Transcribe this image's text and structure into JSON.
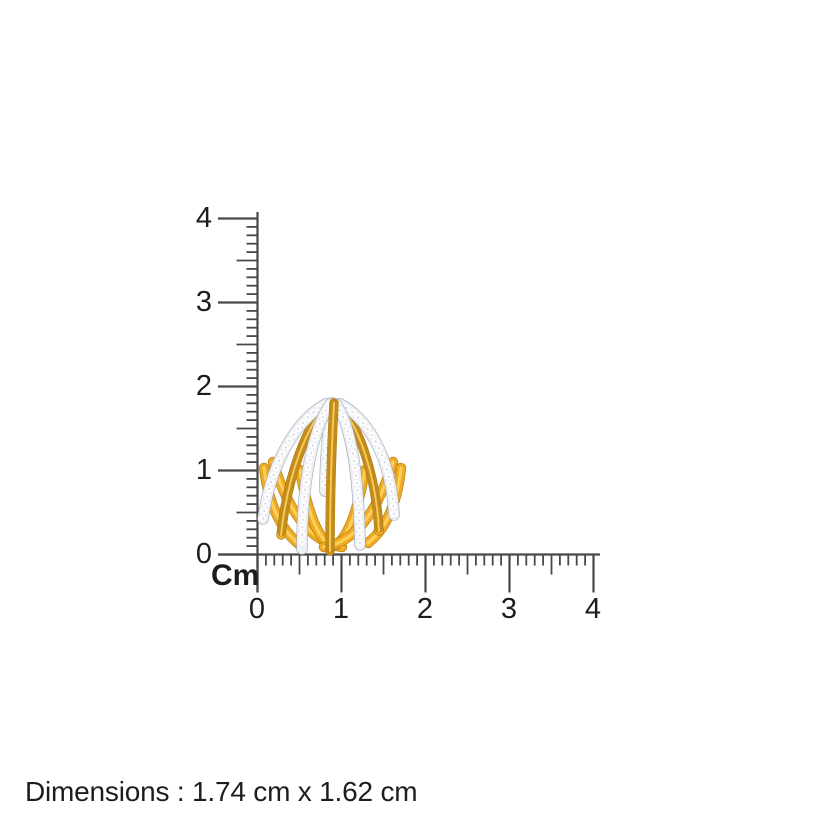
{
  "ruler": {
    "unit_label": "Cm",
    "vertical_labels": [
      "4",
      "3",
      "2",
      "1",
      "0"
    ],
    "horizontal_labels": [
      "0",
      "1",
      "2",
      "3",
      "4"
    ]
  },
  "caption": {
    "text": "Dimensions : 1.74 cm x 1.62 cm"
  },
  "product": {
    "description_colors": "yellow gold bands with white diamond pave"
  },
  "colors": {
    "gold": "#edb02c",
    "gold_highlight": "#ffd35e",
    "diamond_white": "#ffffff",
    "diamond_metal": "#eef0f4",
    "ruler_line": "#48484b",
    "text": "#1d1d1f"
  }
}
